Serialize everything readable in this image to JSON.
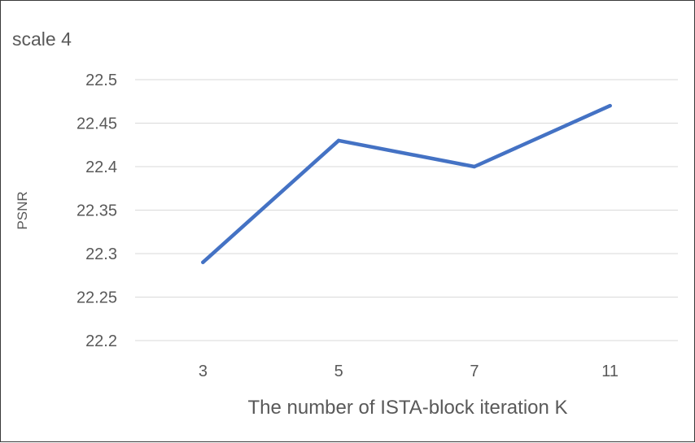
{
  "chart_data": {
    "type": "line",
    "title": "scale 4",
    "xlabel": "The number of ISTA-block iteration K",
    "ylabel": "PSNR",
    "categories": [
      "3",
      "5",
      "7",
      "11"
    ],
    "series": [
      {
        "values": [
          22.29,
          22.43,
          22.4,
          22.47
        ]
      }
    ],
    "ylim": [
      22.2,
      22.5
    ],
    "yticks": [
      "22.2",
      "22.25",
      "22.3",
      "22.35",
      "22.4",
      "22.45",
      "22.5"
    ],
    "grid": true,
    "legend": "none",
    "line_color": "#4472c4"
  }
}
